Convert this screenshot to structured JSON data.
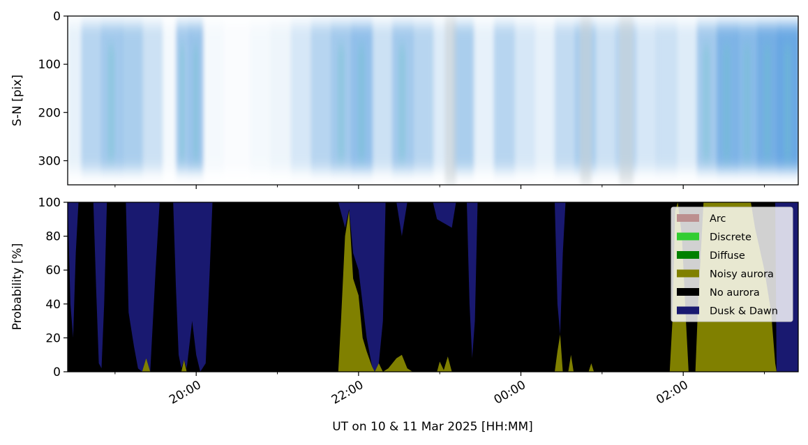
{
  "chart_data": [
    {
      "type": "heatmap",
      "ylabel": "S-N [pix]",
      "y_ticks": [
        0,
        100,
        200,
        300
      ],
      "ylim": [
        350,
        0
      ],
      "x_range": [
        "2025-03-10 18:25",
        "2025-03-11 03:25"
      ],
      "x_major_ticks": [
        "2025-03-10 20:00",
        "2025-03-10 22:00",
        "2025-03-11 00:00",
        "2025-03-11 02:00"
      ],
      "x_minor_ticks": [
        "2025-03-10 19:00",
        "2025-03-10 21:00",
        "2025-03-10 23:00",
        "2025-03-11 01:00",
        "2025-03-11 03:00"
      ],
      "x_ticklabels_shown": false,
      "colors": {
        "bright": "#ffffff",
        "faint": "#c2dcf0",
        "medium": "#7db3e4",
        "strong": "#3f8fdc",
        "teal": "#6cc4cc",
        "grey": "#c9cfd4"
      },
      "intensity_profile": [
        {
          "time": "2025-03-10 18:25",
          "level": 0.2
        },
        {
          "time": "2025-03-10 18:35",
          "level": 0.45
        },
        {
          "time": "2025-03-10 18:50",
          "level": 0.55
        },
        {
          "time": "2025-03-10 19:05",
          "level": 0.5
        },
        {
          "time": "2025-03-10 19:20",
          "level": 0.35
        },
        {
          "time": "2025-03-10 19:35",
          "level": 0.1
        },
        {
          "time": "2025-03-10 19:45",
          "level": 0.55
        },
        {
          "time": "2025-03-10 19:55",
          "level": 0.6
        },
        {
          "time": "2025-03-10 20:05",
          "level": 0.1
        },
        {
          "time": "2025-03-10 20:20",
          "level": 0.05
        },
        {
          "time": "2025-03-10 20:40",
          "level": 0.1
        },
        {
          "time": "2025-03-10 20:55",
          "level": 0.15
        },
        {
          "time": "2025-03-10 21:10",
          "level": 0.3
        },
        {
          "time": "2025-03-10 21:25",
          "level": 0.45
        },
        {
          "time": "2025-03-10 21:40",
          "level": 0.55
        },
        {
          "time": "2025-03-10 21:55",
          "level": 0.65
        },
        {
          "time": "2025-03-10 22:10",
          "level": 0.35
        },
        {
          "time": "2025-03-10 22:25",
          "level": 0.55
        },
        {
          "time": "2025-03-10 22:40",
          "level": 0.45
        },
        {
          "time": "2025-03-10 22:55",
          "level": 0.25
        },
        {
          "time": "2025-03-10 23:10",
          "level": 0.5
        },
        {
          "time": "2025-03-10 23:25",
          "level": 0.2
        },
        {
          "time": "2025-03-10 23:40",
          "level": 0.45
        },
        {
          "time": "2025-03-10 23:55",
          "level": 0.3
        },
        {
          "time": "2025-03-11 00:10",
          "level": 0.2
        },
        {
          "time": "2025-03-11 00:25",
          "level": 0.4
        },
        {
          "time": "2025-03-11 00:40",
          "level": 0.5
        },
        {
          "time": "2025-03-11 00:55",
          "level": 0.35
        },
        {
          "time": "2025-03-11 01:10",
          "level": 0.45
        },
        {
          "time": "2025-03-11 01:25",
          "level": 0.3
        },
        {
          "time": "2025-03-11 01:40",
          "level": 0.35
        },
        {
          "time": "2025-03-11 01:55",
          "level": 0.25
        },
        {
          "time": "2025-03-11 02:10",
          "level": 0.55
        },
        {
          "time": "2025-03-11 02:25",
          "level": 0.75
        },
        {
          "time": "2025-03-11 02:40",
          "level": 0.7
        },
        {
          "time": "2025-03-11 02:55",
          "level": 0.8
        },
        {
          "time": "2025-03-11 03:10",
          "level": 0.85
        },
        {
          "time": "2025-03-11 03:25",
          "level": 0.9
        }
      ]
    },
    {
      "type": "area",
      "stacked": true,
      "ylabel": "Probability [%]",
      "xlabel": "UT on 10 & 11 Mar 2025 [HH:MM]",
      "ylim": [
        0,
        100
      ],
      "y_ticks": [
        0,
        20,
        40,
        60,
        80,
        100
      ],
      "x_range": [
        "2025-03-10 18:25",
        "2025-03-11 03:25"
      ],
      "x_major_ticks": [
        {
          "time": "2025-03-10 20:00",
          "label": "20:00"
        },
        {
          "time": "2025-03-10 22:00",
          "label": "22:00"
        },
        {
          "time": "2025-03-11 00:00",
          "label": "00:00"
        },
        {
          "time": "2025-03-11 02:00",
          "label": "02:00"
        }
      ],
      "x_minor_ticks": [
        "2025-03-10 19:00",
        "2025-03-10 21:00",
        "2025-03-10 23:00",
        "2025-03-11 01:00",
        "2025-03-11 03:00"
      ],
      "legend_position": "top-right",
      "legend": [
        {
          "name": "Arc",
          "color": "#bc8f8f"
        },
        {
          "name": "Discrete",
          "color": "#32cd32"
        },
        {
          "name": "Diffuse",
          "color": "#008000"
        },
        {
          "name": "Noisy aurora",
          "color": "#808000"
        },
        {
          "name": "No aurora",
          "color": "#000000"
        },
        {
          "name": "Dusk & Dawn",
          "color": "#191970"
        }
      ],
      "series": [
        {
          "name": "Noisy aurora",
          "color": "#808000",
          "points": [
            {
              "time": "2025-03-10 18:25",
              "value": 0
            },
            {
              "time": "2025-03-10 19:20",
              "value": 0
            },
            {
              "time": "2025-03-10 19:23",
              "value": 8
            },
            {
              "time": "2025-03-10 19:26",
              "value": 0
            },
            {
              "time": "2025-03-10 19:49",
              "value": 0
            },
            {
              "time": "2025-03-10 19:51",
              "value": 7
            },
            {
              "time": "2025-03-10 19:53",
              "value": 0
            },
            {
              "time": "2025-03-10 21:45",
              "value": 0
            },
            {
              "time": "2025-03-10 21:47",
              "value": 30
            },
            {
              "time": "2025-03-10 21:50",
              "value": 80
            },
            {
              "time": "2025-03-10 21:53",
              "value": 95
            },
            {
              "time": "2025-03-10 21:56",
              "value": 55
            },
            {
              "time": "2025-03-10 22:00",
              "value": 45
            },
            {
              "time": "2025-03-10 22:03",
              "value": 20
            },
            {
              "time": "2025-03-10 22:06",
              "value": 12
            },
            {
              "time": "2025-03-10 22:10",
              "value": 3
            },
            {
              "time": "2025-03-10 22:12",
              "value": 0
            },
            {
              "time": "2025-03-10 22:15",
              "value": 5
            },
            {
              "time": "2025-03-10 22:18",
              "value": 0
            },
            {
              "time": "2025-03-10 22:22",
              "value": 2
            },
            {
              "time": "2025-03-10 22:28",
              "value": 8
            },
            {
              "time": "2025-03-10 22:32",
              "value": 10
            },
            {
              "time": "2025-03-10 22:36",
              "value": 2
            },
            {
              "time": "2025-03-10 22:40",
              "value": 0
            },
            {
              "time": "2025-03-10 22:58",
              "value": 0
            },
            {
              "time": "2025-03-10 23:00",
              "value": 6
            },
            {
              "time": "2025-03-10 23:03",
              "value": 1
            },
            {
              "time": "2025-03-10 23:06",
              "value": 9
            },
            {
              "time": "2025-03-10 23:09",
              "value": 0
            },
            {
              "time": "2025-03-11 00:25",
              "value": 0
            },
            {
              "time": "2025-03-11 00:27",
              "value": 12
            },
            {
              "time": "2025-03-11 00:29",
              "value": 22
            },
            {
              "time": "2025-03-11 00:31",
              "value": 0
            },
            {
              "time": "2025-03-11 00:35",
              "value": 0
            },
            {
              "time": "2025-03-11 00:37",
              "value": 10
            },
            {
              "time": "2025-03-11 00:39",
              "value": 0
            },
            {
              "time": "2025-03-11 00:50",
              "value": 0
            },
            {
              "time": "2025-03-11 00:52",
              "value": 5
            },
            {
              "time": "2025-03-11 00:54",
              "value": 0
            },
            {
              "time": "2025-03-11 01:50",
              "value": 0
            },
            {
              "time": "2025-03-11 01:52",
              "value": 30
            },
            {
              "time": "2025-03-11 01:54",
              "value": 95
            },
            {
              "time": "2025-03-11 01:56",
              "value": 100
            },
            {
              "time": "2025-03-11 01:59",
              "value": 80
            },
            {
              "time": "2025-03-11 02:02",
              "value": 30
            },
            {
              "time": "2025-03-11 02:04",
              "value": 0
            },
            {
              "time": "2025-03-11 02:09",
              "value": 0
            },
            {
              "time": "2025-03-11 02:11",
              "value": 40
            },
            {
              "time": "2025-03-11 02:13",
              "value": 70
            },
            {
              "time": "2025-03-11 02:15",
              "value": 100
            },
            {
              "time": "2025-03-11 02:50",
              "value": 100
            },
            {
              "time": "2025-03-11 02:53",
              "value": 85
            },
            {
              "time": "2025-03-11 03:00",
              "value": 60
            },
            {
              "time": "2025-03-11 03:05",
              "value": 35
            },
            {
              "time": "2025-03-11 03:08",
              "value": 5
            },
            {
              "time": "2025-03-11 03:09",
              "value": 0
            },
            {
              "time": "2025-03-11 03:25",
              "value": 0
            }
          ]
        },
        {
          "name": "No aurora",
          "color": "#000000",
          "top_boundary": [
            {
              "time": "2025-03-10 18:25",
              "value": 100
            },
            {
              "time": "2025-03-10 18:27",
              "value": 40
            },
            {
              "time": "2025-03-10 18:29",
              "value": 20
            },
            {
              "time": "2025-03-10 18:31",
              "value": 70
            },
            {
              "time": "2025-03-10 18:33",
              "value": 100
            },
            {
              "time": "2025-03-10 18:44",
              "value": 100
            },
            {
              "time": "2025-03-10 18:46",
              "value": 50
            },
            {
              "time": "2025-03-10 18:48",
              "value": 5
            },
            {
              "time": "2025-03-10 18:50",
              "value": 2
            },
            {
              "time": "2025-03-10 18:52",
              "value": 40
            },
            {
              "time": "2025-03-10 18:54",
              "value": 100
            },
            {
              "time": "2025-03-10 19:08",
              "value": 100
            },
            {
              "time": "2025-03-10 19:10",
              "value": 35
            },
            {
              "time": "2025-03-10 19:14",
              "value": 15
            },
            {
              "time": "2025-03-10 19:17",
              "value": 2
            },
            {
              "time": "2025-03-10 19:20",
              "value": 0
            },
            {
              "time": "2025-03-10 19:23",
              "value": 8
            },
            {
              "time": "2025-03-10 19:26",
              "value": 0
            },
            {
              "time": "2025-03-10 19:30",
              "value": 60
            },
            {
              "time": "2025-03-10 19:33",
              "value": 100
            },
            {
              "time": "2025-03-10 19:43",
              "value": 100
            },
            {
              "time": "2025-03-10 19:45",
              "value": 50
            },
            {
              "time": "2025-03-10 19:47",
              "value": 10
            },
            {
              "time": "2025-03-10 19:49",
              "value": 2
            },
            {
              "time": "2025-03-10 19:51",
              "value": 7
            },
            {
              "time": "2025-03-10 19:53",
              "value": 2
            },
            {
              "time": "2025-03-10 19:57",
              "value": 30
            },
            {
              "time": "2025-03-10 20:00",
              "value": 10
            },
            {
              "time": "2025-03-10 20:03",
              "value": 0
            },
            {
              "time": "2025-03-10 20:07",
              "value": 5
            },
            {
              "time": "2025-03-10 20:10",
              "value": 60
            },
            {
              "time": "2025-03-10 20:12",
              "value": 100
            },
            {
              "time": "2025-03-10 21:45",
              "value": 100
            },
            {
              "time": "2025-03-10 21:50",
              "value": 85
            },
            {
              "time": "2025-03-10 21:53",
              "value": 96
            },
            {
              "time": "2025-03-10 21:56",
              "value": 70
            },
            {
              "time": "2025-03-10 22:00",
              "value": 60
            },
            {
              "time": "2025-03-10 22:03",
              "value": 40
            },
            {
              "time": "2025-03-10 22:06",
              "value": 20
            },
            {
              "time": "2025-03-10 22:10",
              "value": 3
            },
            {
              "time": "2025-03-10 22:12",
              "value": 0
            },
            {
              "time": "2025-03-10 22:15",
              "value": 5
            },
            {
              "time": "2025-03-10 22:18",
              "value": 30
            },
            {
              "time": "2025-03-10 22:20",
              "value": 100
            },
            {
              "time": "2025-03-10 22:28",
              "value": 100
            },
            {
              "time": "2025-03-10 22:32",
              "value": 80
            },
            {
              "time": "2025-03-10 22:36",
              "value": 100
            },
            {
              "time": "2025-03-10 22:55",
              "value": 100
            },
            {
              "time": "2025-03-10 22:58",
              "value": 90
            },
            {
              "time": "2025-03-10 23:09",
              "value": 85
            },
            {
              "time": "2025-03-10 23:12",
              "value": 100
            },
            {
              "time": "2025-03-10 23:20",
              "value": 100
            },
            {
              "time": "2025-03-10 23:22",
              "value": 40
            },
            {
              "time": "2025-03-10 23:24",
              "value": 8
            },
            {
              "time": "2025-03-10 23:26",
              "value": 30
            },
            {
              "time": "2025-03-10 23:28",
              "value": 100
            },
            {
              "time": "2025-03-11 00:25",
              "value": 100
            },
            {
              "time": "2025-03-11 00:27",
              "value": 40
            },
            {
              "time": "2025-03-11 00:29",
              "value": 22
            },
            {
              "time": "2025-03-11 00:31",
              "value": 70
            },
            {
              "time": "2025-03-11 00:33",
              "value": 100
            },
            {
              "time": "2025-03-11 01:50",
              "value": 100
            },
            {
              "time": "2025-03-11 01:54",
              "value": 100
            },
            {
              "time": "2025-03-11 01:59",
              "value": 100
            },
            {
              "time": "2025-03-11 02:02",
              "value": 100
            },
            {
              "time": "2025-03-11 02:04",
              "value": 100
            },
            {
              "time": "2025-03-11 02:09",
              "value": 100
            },
            {
              "time": "2025-03-11 02:13",
              "value": 100
            },
            {
              "time": "2025-03-11 03:08",
              "value": 100
            },
            {
              "time": "2025-03-11 03:09",
              "value": 0
            },
            {
              "time": "2025-03-11 03:25",
              "value": 0
            }
          ]
        },
        {
          "name": "Dusk & Dawn",
          "color": "#191970",
          "description_top": 100
        }
      ]
    }
  ]
}
